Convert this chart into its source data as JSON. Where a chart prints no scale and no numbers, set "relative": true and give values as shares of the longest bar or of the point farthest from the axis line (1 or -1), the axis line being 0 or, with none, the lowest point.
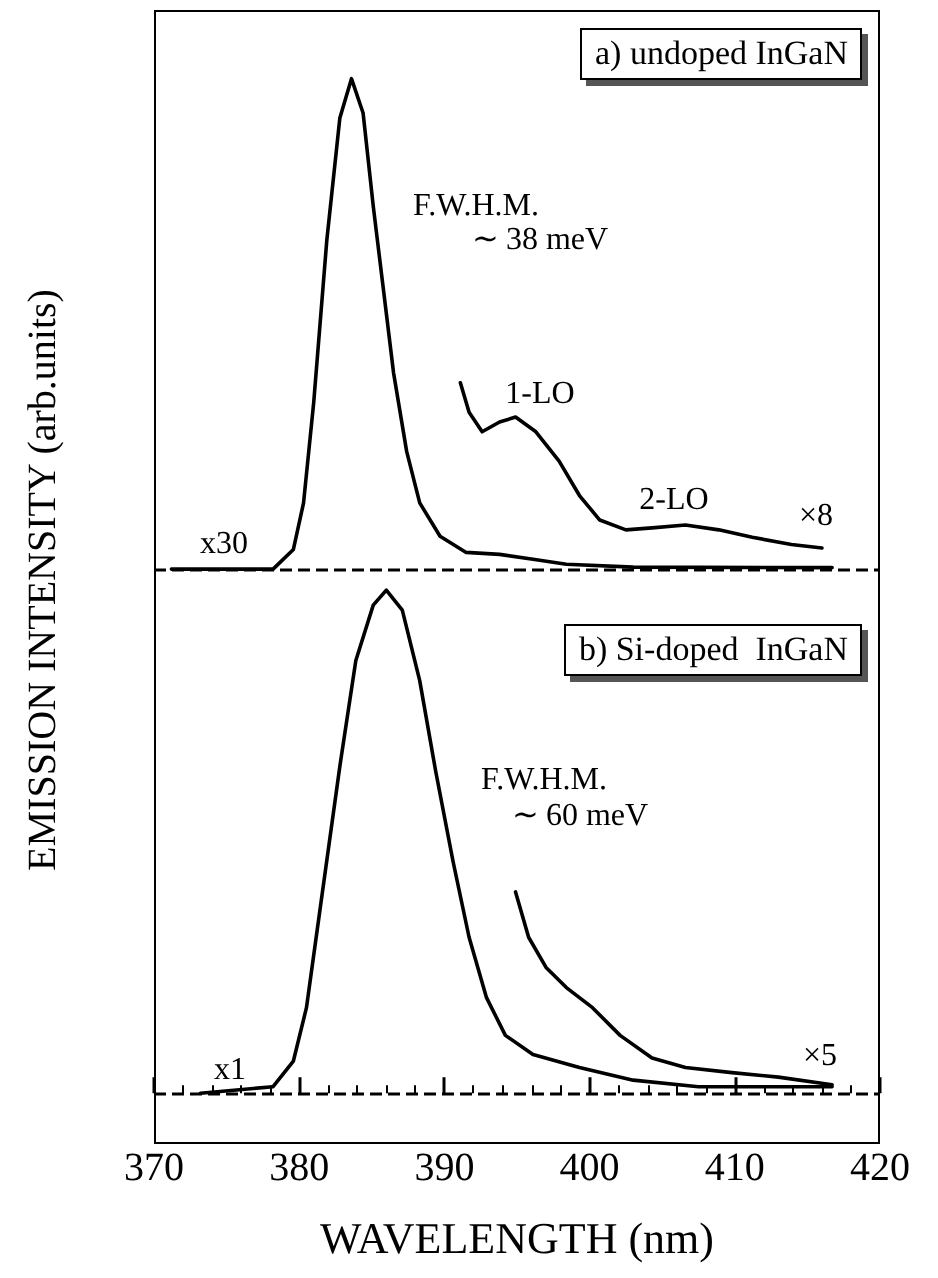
{
  "chart_data": [
    {
      "type": "line",
      "relative": true,
      "ylabel": "EMISSION INTENSITY (arb.units)",
      "xlim": [
        370,
        420
      ],
      "xticks": [
        370,
        380,
        390,
        400,
        410,
        420
      ],
      "tick_labels": false,
      "marker": "none",
      "line_style": "solid",
      "series": [
        {
          "color": "#000000",
          "x": [
            371.2,
            378.2,
            379.6,
            380.3,
            381.0,
            381.9,
            382.8,
            383.6,
            384.4,
            385.1,
            385.8,
            386.5,
            387.4,
            388.3,
            389.7,
            391.5,
            393.8,
            396.1,
            398.4,
            403.0,
            416.7
          ],
          "values": [
            0,
            0,
            0.04,
            0.135,
            0.34,
            0.67,
            0.92,
            1.0,
            0.93,
            0.74,
            0.57,
            0.4,
            0.24,
            0.135,
            0.067,
            0.034,
            0.03,
            0.02,
            0.01,
            0.004,
            0.003
          ]
        },
        {
          "color": "#000000",
          "x": [
            391.1,
            391.7,
            392.6,
            393.8,
            394.9,
            396.3,
            397.9,
            399.3,
            400.7,
            402.5,
            404.3,
            406.6,
            408.9,
            411.2,
            413.9,
            416.0
          ],
          "values": [
            0.38,
            0.32,
            0.28,
            0.3,
            0.31,
            0.28,
            0.22,
            0.15,
            0.1,
            0.08,
            0.084,
            0.09,
            0.08,
            0.065,
            0.05,
            0.043
          ]
        }
      ],
      "ref_lines": [
        {
          "axis": "y",
          "value": 0,
          "line_style": "dashed"
        }
      ],
      "annotations": [
        "a) undoped InGaN",
        "F.W.H.M.",
        "∼ 38 meV",
        "1-LO",
        "2-LO",
        "×8",
        "x30"
      ]
    },
    {
      "type": "line",
      "relative": true,
      "xlabel": "WAVELENGTH (nm)",
      "xlim": [
        370,
        420
      ],
      "xticks": [
        370,
        380,
        390,
        400,
        410,
        420
      ],
      "tick_labels": "x",
      "marker": "none",
      "line_style": "solid",
      "series": [
        {
          "color": "#000000",
          "x": [
            373.2,
            378.2,
            379.6,
            380.5,
            381.6,
            382.8,
            383.9,
            385.1,
            386.0,
            387.1,
            388.3,
            389.4,
            390.6,
            391.7,
            392.9,
            394.2,
            396.1,
            399.3,
            403.0,
            407.5,
            416.7
          ],
          "values": [
            0,
            0.013,
            0.064,
            0.17,
            0.4,
            0.65,
            0.86,
            0.97,
            1.0,
            0.96,
            0.82,
            0.64,
            0.46,
            0.31,
            0.19,
            0.115,
            0.077,
            0.051,
            0.026,
            0.013,
            0.013
          ]
        },
        {
          "color": "#000000",
          "x": [
            394.9,
            395.8,
            397.0,
            398.4,
            400.2,
            402.1,
            404.3,
            406.6,
            409.8,
            413.0,
            416.7
          ],
          "values": [
            0.4,
            0.31,
            0.25,
            0.21,
            0.17,
            0.115,
            0.07,
            0.051,
            0.041,
            0.032,
            0.017
          ]
        }
      ],
      "ref_lines": [
        {
          "axis": "y",
          "value": 0,
          "line_style": "dashed"
        }
      ],
      "annotations": [
        "b) Si-doped  InGaN",
        "F.W.H.M.",
        "∼ 60 meV",
        "×5",
        "x1"
      ]
    }
  ]
}
